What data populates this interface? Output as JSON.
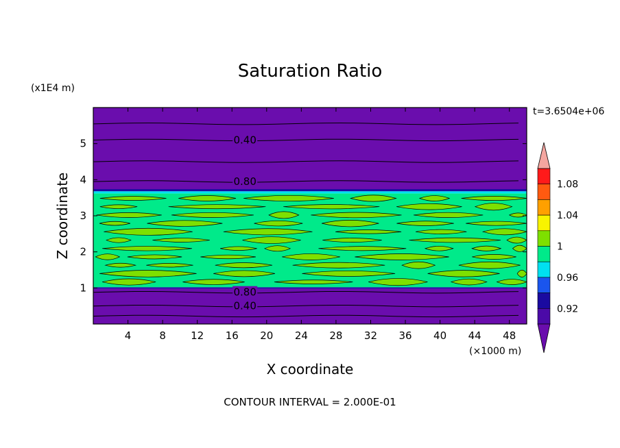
{
  "chart_data": {
    "type": "heatmap",
    "title": "Saturation Ratio",
    "xlabel": "X coordinate",
    "ylabel": "Z coordinate",
    "x_units": "(×1000 m)",
    "y_units": "(x1E4 m)",
    "xlim": [
      0,
      50
    ],
    "ylim": [
      0,
      6
    ],
    "xticks": [
      4,
      8,
      12,
      16,
      20,
      24,
      28,
      32,
      36,
      40,
      44,
      48
    ],
    "yticks": [
      1,
      2,
      3,
      4,
      5
    ],
    "time_label": "t=3.6504e+06",
    "footer": "CONTOUR INTERVAL = 2.000E-01",
    "contour_labels": [
      {
        "text": "0.40",
        "x": 17.5,
        "z": 5.1
      },
      {
        "text": "0.80",
        "x": 17.5,
        "z": 3.95
      },
      {
        "text": "0.80",
        "x": 17.5,
        "z": 0.88
      },
      {
        "text": "0.40",
        "x": 17.5,
        "z": 0.5
      }
    ],
    "levels": [
      {
        "min": null,
        "max": 0.9,
        "color": "#6a0dad"
      },
      {
        "min": 0.9,
        "max": 0.92,
        "color": "#4b0aa8"
      },
      {
        "min": 0.92,
        "max": 0.94,
        "color": "#1a0aa0"
      },
      {
        "min": 0.94,
        "max": 0.96,
        "color": "#1a55ee"
      },
      {
        "min": 0.96,
        "max": 0.98,
        "color": "#00e0f0"
      },
      {
        "min": 0.98,
        "max": 1.0,
        "color": "#00ea8a"
      },
      {
        "min": 1.0,
        "max": 1.02,
        "color": "#7ee000"
      },
      {
        "min": 1.02,
        "max": 1.04,
        "color": "#f8f400"
      },
      {
        "min": 1.04,
        "max": 1.06,
        "color": "#ffa000"
      },
      {
        "min": 1.06,
        "max": 1.08,
        "color": "#ff5a10"
      },
      {
        "min": 1.08,
        "max": 1.1,
        "color": "#ff1a1a"
      },
      {
        "min": 1.1,
        "max": null,
        "color": "#f4a6a0"
      }
    ],
    "legend_labels": [
      "1.08",
      "1.04",
      "1",
      "0.96",
      "0.92"
    ],
    "bands": [
      {
        "z0": 0.0,
        "z1": 0.98,
        "color": "#6a0dad"
      },
      {
        "z0": 0.98,
        "z1": 1.02,
        "color": "#1a0aa0"
      },
      {
        "z0": 1.02,
        "z1": 3.62,
        "color": "#00ea8a"
      },
      {
        "z0": 3.62,
        "z1": 3.68,
        "color": "#00e0f0"
      },
      {
        "z0": 3.68,
        "z1": 3.74,
        "color": "#1a0aa0"
      },
      {
        "z0": 3.74,
        "z1": 6.0,
        "color": "#6a0dad"
      }
    ]
  },
  "colors": {
    "background": "#ffffff",
    "contour_line": "#000000",
    "dry_layer": "#6a0dad",
    "cloud_layer": "#00ea8a",
    "cloud_patch": "#7ee000"
  }
}
